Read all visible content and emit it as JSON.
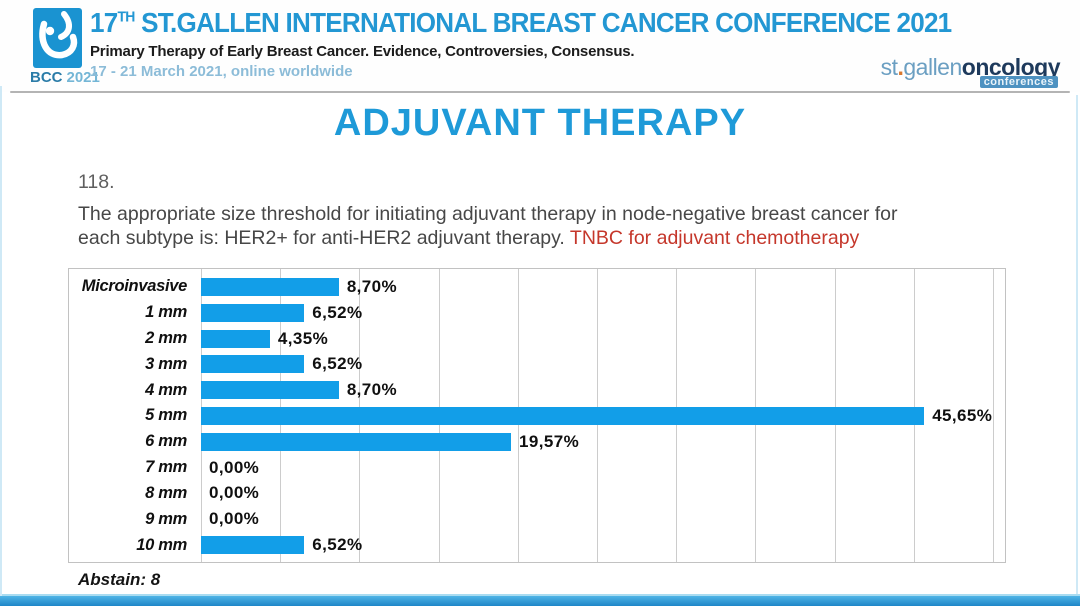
{
  "header": {
    "logo_caption_bcc": "BCC",
    "logo_caption_year": "2021",
    "title_num": "17",
    "title_sup": "TH",
    "title_rest": " ST.GALLEN INTERNATIONAL BREAST CANCER CONFERENCE 2021",
    "subtitle": "Primary Therapy of Early Breast Cancer. Evidence, Controversies, Consensus.",
    "date_line": "17 - 21 March 2021, online worldwide",
    "brand": {
      "st": "st",
      "dot": ".",
      "gallen": "gallen",
      "oncology": "oncology",
      "conferences": "conferences"
    }
  },
  "slide": {
    "title": "ADJUVANT THERAPY",
    "question_number": "118.",
    "question_line1": "The appropriate size threshold for initiating adjuvant therapy in node-negative breast cancer for",
    "question_line2_plain": "each subtype is: HER2+ for anti-HER2 adjuvant therapy. ",
    "question_line2_red": "TNBC for adjuvant chemotherapy",
    "abstain_label": "Abstain: 8"
  },
  "chart_data": {
    "type": "bar",
    "orientation": "horizontal",
    "categories": [
      "Microinvasive",
      "1 mm",
      "2 mm",
      "3 mm",
      "4 mm",
      "5 mm",
      "6 mm",
      "7 mm",
      "8 mm",
      "9 mm",
      "10 mm"
    ],
    "values": [
      8.7,
      6.52,
      4.35,
      6.52,
      8.7,
      45.65,
      19.57,
      0.0,
      0.0,
      0.0,
      6.52
    ],
    "value_labels": [
      "8,70%",
      "6,52%",
      "4,35%",
      "6,52%",
      "8,70%",
      "45,65%",
      "19,57%",
      "0,00%",
      "0,00%",
      "0,00%",
      "6,52%"
    ],
    "xlim": [
      0,
      50.75
    ],
    "gridline_step": 5,
    "gridline_max": 50,
    "grid_on": true,
    "legend": "none",
    "bar_color": "#129ee8",
    "abstain_count": 8
  },
  "colors": {
    "header_title_blue": "#2397d3",
    "slide_title_blue": "#1e9ad8",
    "bar_blue": "#129ee8",
    "red_text": "#c5372b",
    "date_light_blue": "#8cbcd8",
    "brand_navy": "#1e3a5c",
    "brand_light_blue": "#6b9fc2",
    "brand_orange": "#d9782f",
    "gridline_gray": "#cccccc"
  }
}
